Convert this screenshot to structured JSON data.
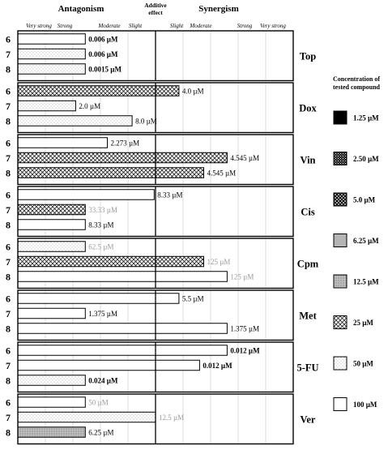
{
  "chart_data": {
    "type": "bar",
    "header": {
      "left": "Antagonism",
      "center": [
        "Additive",
        "effect"
      ],
      "right": "Synergism"
    },
    "scale_labels": [
      "Very strong",
      "Strong",
      "Moderate",
      "Slight",
      "Slight",
      "Moderate",
      "Strong",
      "Very strong"
    ],
    "legend_title": [
      "Concentration of",
      "tested compound"
    ],
    "legend": [
      {
        "label": "1.25 µM",
        "pattern": "black"
      },
      {
        "label": "2.50 µM",
        "pattern": "dense-check"
      },
      {
        "label": "5.0 µM",
        "pattern": "crosshatch-dark"
      },
      {
        "label": "6.25 µM",
        "pattern": "gray"
      },
      {
        "label": "12.5 µM",
        "pattern": "gray-dots"
      },
      {
        "label": "25 µM",
        "pattern": "crosshatch"
      },
      {
        "label": "50 µM",
        "pattern": "light-dots"
      },
      {
        "label": "100 µM",
        "pattern": "white"
      }
    ],
    "x_scale": {
      "min": 0,
      "additive": 1,
      "max": 2,
      "unit": "relative combination effect (antagonism < 1 < synergism)"
    },
    "panels": [
      {
        "drug": "Top",
        "bars": [
          {
            "compound": "6",
            "value": 0.49,
            "pattern": "white",
            "label": "0.006 µM",
            "label_bold": true,
            "label_gray": false
          },
          {
            "compound": "7",
            "value": 0.49,
            "pattern": "light-dots",
            "label": "0.006 µM",
            "label_bold": true,
            "label_gray": false
          },
          {
            "compound": "8",
            "value": 0.49,
            "pattern": "light-dots",
            "label": "0.0015 µM",
            "label_bold": true,
            "label_gray": false
          }
        ]
      },
      {
        "drug": "Dox",
        "bars": [
          {
            "compound": "6",
            "value": 1.17,
            "pattern": "crosshatch",
            "label": "4.0 µM",
            "label_bold": false,
            "label_gray": false
          },
          {
            "compound": "7",
            "value": 0.42,
            "pattern": "light-dots",
            "label": "2.0 µM",
            "label_bold": false,
            "label_gray": false
          },
          {
            "compound": "8",
            "value": 0.83,
            "pattern": "light-dots",
            "label": "8.0 µM",
            "label_bold": false,
            "label_gray": false
          }
        ]
      },
      {
        "drug": "Vin",
        "bars": [
          {
            "compound": "6",
            "value": 0.65,
            "pattern": "white",
            "label": "2.273 µM",
            "label_bold": false,
            "label_gray": false
          },
          {
            "compound": "7",
            "value": 1.52,
            "pattern": "crosshatch",
            "label": "4.545 µM",
            "label_bold": false,
            "label_gray": false
          },
          {
            "compound": "8",
            "value": 1.35,
            "pattern": "crosshatch",
            "label": "4.545 µM",
            "label_bold": false,
            "label_gray": false
          }
        ]
      },
      {
        "drug": "Cis",
        "bars": [
          {
            "compound": "6",
            "value": 0.99,
            "pattern": "white",
            "label": "8.33 µM",
            "label_bold": false,
            "label_gray": false
          },
          {
            "compound": "7",
            "value": 0.49,
            "pattern": "crosshatch",
            "label": "33.33 µM",
            "label_bold": false,
            "label_gray": true
          },
          {
            "compound": "8",
            "value": 0.49,
            "pattern": "white",
            "label": "8.33 µM",
            "label_bold": false,
            "label_gray": false
          }
        ]
      },
      {
        "drug": "Cpm",
        "bars": [
          {
            "compound": "6",
            "value": 0.49,
            "pattern": "light-dots",
            "label": "62.5 µM",
            "label_bold": false,
            "label_gray": true
          },
          {
            "compound": "7",
            "value": 1.35,
            "pattern": "crosshatch",
            "label": "125 µM",
            "label_bold": false,
            "label_gray": true
          },
          {
            "compound": "8",
            "value": 1.52,
            "pattern": "white",
            "label": "125 µM",
            "label_bold": false,
            "label_gray": true
          }
        ]
      },
      {
        "drug": "Met",
        "bars": [
          {
            "compound": "6",
            "value": 1.17,
            "pattern": "white",
            "label": "5.5 µM",
            "label_bold": false,
            "label_gray": false
          },
          {
            "compound": "7",
            "value": 0.49,
            "pattern": "white",
            "label": "1.375 µM",
            "label_bold": false,
            "label_gray": false
          },
          {
            "compound": "8",
            "value": 1.52,
            "pattern": "white",
            "label": "1.375 µM",
            "label_bold": false,
            "label_gray": false
          }
        ]
      },
      {
        "drug": "5-FU",
        "bars": [
          {
            "compound": "6",
            "value": 1.52,
            "pattern": "white",
            "label": "0.012 µM",
            "label_bold": true,
            "label_gray": false
          },
          {
            "compound": "7",
            "value": 1.32,
            "pattern": "white",
            "label": "0.012 µM",
            "label_bold": true,
            "label_gray": false
          },
          {
            "compound": "8",
            "value": 0.49,
            "pattern": "light-dots",
            "label": "0.024 µM",
            "label_bold": true,
            "label_gray": false
          }
        ]
      },
      {
        "drug": "Ver",
        "bars": [
          {
            "compound": "6",
            "value": 0.49,
            "pattern": "white",
            "label": "50 µM",
            "label_bold": false,
            "label_gray": true
          },
          {
            "compound": "7",
            "value": 1.0,
            "pattern": "light-dots",
            "label": "12.5 µM",
            "label_bold": false,
            "label_gray": true
          },
          {
            "compound": "8",
            "value": 0.49,
            "pattern": "gray-dots",
            "label": "6.25 µM",
            "label_bold": false,
            "label_gray": false
          }
        ]
      }
    ],
    "colors": {
      "frame": "#000000",
      "grid": "#c8c8c8",
      "text": "#000000",
      "gray_text": "#9a9a9a",
      "gray_fill": "#b4b4b4"
    }
  }
}
